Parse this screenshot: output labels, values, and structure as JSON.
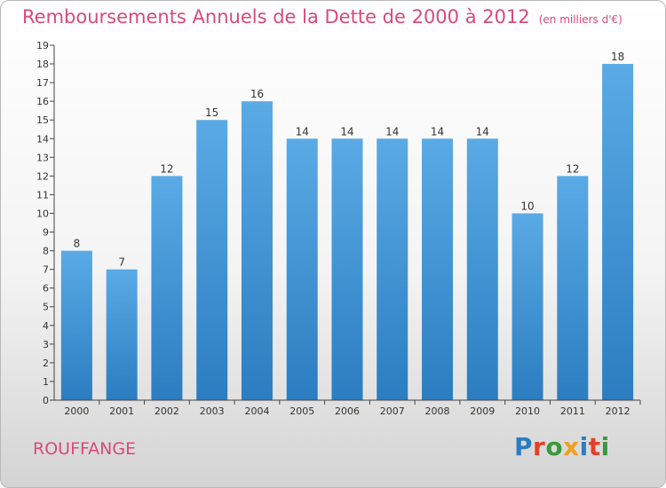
{
  "header": {
    "title": "Remboursements Annuels de la Dette de 2000 à 2012",
    "unit": "(en milliers d'€)"
  },
  "footer": {
    "commune": "ROUFFANGE",
    "brand": "Proxiti"
  },
  "colors": {
    "title": "#d84a7a",
    "bar_light": "#5aaae6",
    "bar_dark": "#2c7dc0",
    "brand_letters": [
      "#2c7dc0",
      "#e2402a",
      "#3a9a3a",
      "#f0a020",
      "#2c7dc0",
      "#e2402a",
      "#3a9a3a"
    ]
  },
  "chart_data": {
    "type": "bar",
    "title": "Remboursements Annuels de la Dette de 2000 à 2012",
    "subtitle": "(en milliers d'€)",
    "xlabel": "",
    "ylabel": "",
    "categories": [
      "2000",
      "2001",
      "2002",
      "2003",
      "2004",
      "2005",
      "2006",
      "2007",
      "2008",
      "2009",
      "2010",
      "2011",
      "2012"
    ],
    "values": [
      8,
      7,
      12,
      15,
      16,
      14,
      14,
      14,
      14,
      14,
      10,
      12,
      18
    ],
    "ylim": [
      0,
      19
    ],
    "yticks": [
      "0",
      "1",
      "2",
      "3",
      "4",
      "5",
      "6",
      "7",
      "8",
      "9",
      "10",
      "11",
      "12",
      "13",
      "14",
      "15",
      "16",
      "17",
      "18",
      "19"
    ],
    "grid": false,
    "legend": "none"
  }
}
